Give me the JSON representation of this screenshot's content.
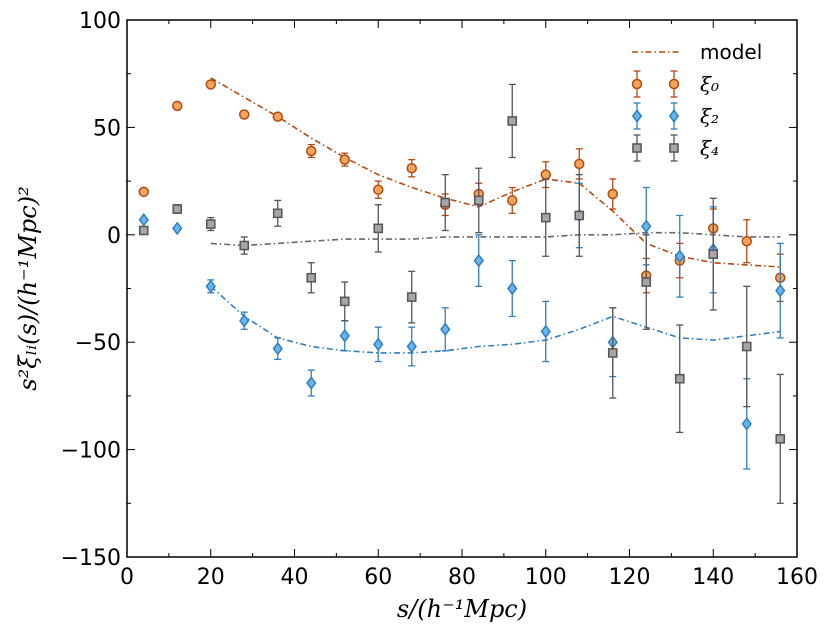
{
  "chart_data": {
    "type": "scatter",
    "title": "",
    "xlabel": "s/(h⁻¹Mpc)",
    "ylabel": "s²ξₗᵢ(s)/(h⁻¹Mpc)²",
    "xlim": [
      0,
      160
    ],
    "ylim": [
      -150,
      100
    ],
    "xticks": [
      0,
      20,
      40,
      60,
      80,
      100,
      120,
      140,
      160
    ],
    "yticks": [
      -150,
      -100,
      -50,
      0,
      50,
      100
    ],
    "xtick_labels": [
      "0",
      "20",
      "40",
      "60",
      "80",
      "100",
      "120",
      "140",
      "160"
    ],
    "ytick_labels": [
      "−150",
      "−100",
      "−50",
      "0",
      "50",
      "100"
    ],
    "grid": false,
    "legend_position": "top-right",
    "legend": [
      {
        "label": "model",
        "style": "dashdot-line",
        "color": "#b5490f"
      },
      {
        "label": "ξ₀",
        "style": "circle",
        "color": "#b5490f",
        "fill": "#f0a55e"
      },
      {
        "label": "ξ₂",
        "style": "diamond",
        "color": "#2f7fc1",
        "fill": "#6ab4ea"
      },
      {
        "label": "ξ₄",
        "style": "square",
        "color": "#555555",
        "fill": "#a6a6a6"
      }
    ],
    "series": [
      {
        "name": "ξ₀",
        "marker": "circle",
        "color": "#b5490f",
        "fill": "#f0a55e",
        "points": [
          {
            "x": 4,
            "y": 20,
            "err": 0
          },
          {
            "x": 12,
            "y": 60,
            "err": 0
          },
          {
            "x": 20,
            "y": 70,
            "err": 0
          },
          {
            "x": 28,
            "y": 56,
            "err": 0
          },
          {
            "x": 36,
            "y": 55,
            "err": 1.5
          },
          {
            "x": 44,
            "y": 39,
            "err": 3
          },
          {
            "x": 52,
            "y": 35,
            "err": 3
          },
          {
            "x": 60,
            "y": 21,
            "err": 4
          },
          {
            "x": 68,
            "y": 31,
            "err": 4
          },
          {
            "x": 76,
            "y": 14,
            "err": 5
          },
          {
            "x": 84,
            "y": 19,
            "err": 5
          },
          {
            "x": 92,
            "y": 16,
            "err": 6
          },
          {
            "x": 100,
            "y": 28,
            "err": 6
          },
          {
            "x": 108,
            "y": 33,
            "err": 7
          },
          {
            "x": 116,
            "y": 19,
            "err": 7
          },
          {
            "x": 124,
            "y": -19,
            "err": 8
          },
          {
            "x": 132,
            "y": -12,
            "err": 8
          },
          {
            "x": 140,
            "y": 3,
            "err": 9
          },
          {
            "x": 148,
            "y": -3,
            "err": 10
          },
          {
            "x": 156,
            "y": -20,
            "err": 11
          }
        ]
      },
      {
        "name": "ξ₂",
        "marker": "diamond",
        "color": "#2f7fc1",
        "fill": "#6ab4ea",
        "points": [
          {
            "x": 4,
            "y": 7,
            "err": 0
          },
          {
            "x": 12,
            "y": 3,
            "err": 0
          },
          {
            "x": 20,
            "y": -24,
            "err": 3
          },
          {
            "x": 28,
            "y": -40,
            "err": 4
          },
          {
            "x": 36,
            "y": -53,
            "err": 5
          },
          {
            "x": 44,
            "y": -69,
            "err": 6
          },
          {
            "x": 52,
            "y": -47,
            "err": 7
          },
          {
            "x": 60,
            "y": -51,
            "err": 8
          },
          {
            "x": 68,
            "y": -52,
            "err": 9
          },
          {
            "x": 76,
            "y": -44,
            "err": 10
          },
          {
            "x": 84,
            "y": -12,
            "err": 12
          },
          {
            "x": 92,
            "y": -25,
            "err": 13
          },
          {
            "x": 100,
            "y": -45,
            "err": 14
          },
          {
            "x": 108,
            "y": 9,
            "err": 15
          },
          {
            "x": 116,
            "y": -50,
            "err": 16
          },
          {
            "x": 124,
            "y": 4,
            "err": 18
          },
          {
            "x": 132,
            "y": -10,
            "err": 19
          },
          {
            "x": 140,
            "y": -7,
            "err": 20
          },
          {
            "x": 148,
            "y": -88,
            "err": 21
          },
          {
            "x": 156,
            "y": -26,
            "err": 22
          }
        ]
      },
      {
        "name": "ξ₄",
        "marker": "square",
        "color": "#555555",
        "fill": "#a6a6a6",
        "points": [
          {
            "x": 4,
            "y": 2,
            "err": 0
          },
          {
            "x": 12,
            "y": 12,
            "err": 2
          },
          {
            "x": 20,
            "y": 5,
            "err": 3
          },
          {
            "x": 28,
            "y": -5,
            "err": 4
          },
          {
            "x": 36,
            "y": 10,
            "err": 6
          },
          {
            "x": 44,
            "y": -20,
            "err": 7
          },
          {
            "x": 52,
            "y": -31,
            "err": 9
          },
          {
            "x": 60,
            "y": 3,
            "err": 11
          },
          {
            "x": 68,
            "y": -29,
            "err": 12
          },
          {
            "x": 76,
            "y": 15,
            "err": 13
          },
          {
            "x": 84,
            "y": 16,
            "err": 15
          },
          {
            "x": 92,
            "y": 53,
            "err": 17
          },
          {
            "x": 100,
            "y": 8,
            "err": 18
          },
          {
            "x": 108,
            "y": 9,
            "err": 19
          },
          {
            "x": 116,
            "y": -55,
            "err": 21
          },
          {
            "x": 124,
            "y": -22,
            "err": 22
          },
          {
            "x": 132,
            "y": -67,
            "err": 25
          },
          {
            "x": 140,
            "y": -9,
            "err": 26
          },
          {
            "x": 148,
            "y": -52,
            "err": 28
          },
          {
            "x": 156,
            "y": -95,
            "err": 30
          }
        ]
      }
    ],
    "model_lines": [
      {
        "name": "model ξ₀",
        "color": "#b5490f",
        "x": [
          20,
          28,
          36,
          44,
          52,
          60,
          68,
          76,
          84,
          92,
          100,
          108,
          116,
          124,
          132,
          140,
          148,
          156
        ],
        "y": [
          73,
          64,
          55,
          45,
          36,
          28,
          22,
          17,
          13,
          20,
          26,
          24,
          11,
          -4,
          -10,
          -13,
          -14,
          -15
        ]
      },
      {
        "name": "model ξ₂",
        "color": "#2f7fc1",
        "x": [
          20,
          28,
          36,
          44,
          52,
          60,
          68,
          76,
          84,
          92,
          100,
          108,
          116,
          124,
          132,
          140,
          148,
          156
        ],
        "y": [
          -24,
          -38,
          -48,
          -52,
          -54,
          -55,
          -55,
          -54,
          -52,
          -51,
          -49,
          -44,
          -38,
          -43,
          -48,
          -49,
          -47,
          -45
        ]
      },
      {
        "name": "model ξ₄",
        "color": "#666666",
        "x": [
          20,
          28,
          36,
          44,
          52,
          60,
          68,
          76,
          84,
          92,
          100,
          108,
          116,
          124,
          132,
          140,
          148,
          156
        ],
        "y": [
          -4,
          -5,
          -4,
          -3,
          -2,
          -2,
          -2,
          -1,
          -1,
          -1,
          -1,
          0,
          0,
          1,
          1,
          0,
          -1,
          -1
        ]
      }
    ]
  }
}
